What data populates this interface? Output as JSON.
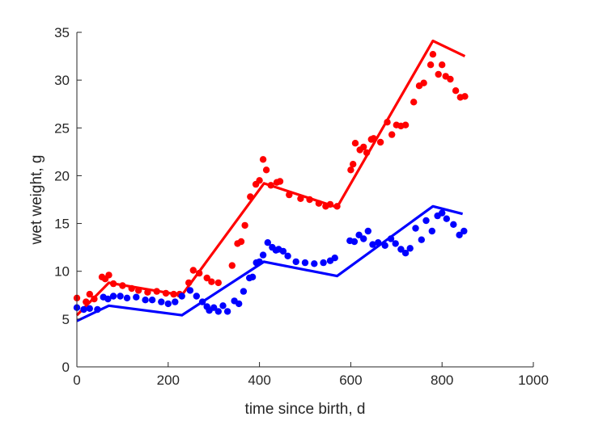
{
  "chart_data": {
    "type": "scatter",
    "xlabel": "time since birth, d",
    "ylabel": "wet weight, g",
    "xlim": [
      0,
      1000
    ],
    "ylim": [
      0,
      35
    ],
    "xticks": [
      0,
      200,
      400,
      600,
      800,
      1000
    ],
    "yticks": [
      0,
      5,
      10,
      15,
      20,
      25,
      30,
      35
    ],
    "grid": false,
    "legend": "none",
    "series": [
      {
        "color": "#ff0000",
        "points": [
          [
            0,
            7.2
          ],
          [
            20,
            6.8
          ],
          [
            28,
            7.6
          ],
          [
            38,
            7.1
          ],
          [
            55,
            9.4
          ],
          [
            62,
            9.2
          ],
          [
            70,
            9.6
          ],
          [
            80,
            8.7
          ],
          [
            100,
            8.5
          ],
          [
            120,
            8.2
          ],
          [
            135,
            8.0
          ],
          [
            155,
            7.8
          ],
          [
            175,
            7.9
          ],
          [
            195,
            7.7
          ],
          [
            212,
            7.6
          ],
          [
            225,
            7.6
          ],
          [
            245,
            8.8
          ],
          [
            255,
            10.1
          ],
          [
            268,
            9.8
          ],
          [
            285,
            9.3
          ],
          [
            295,
            8.9
          ],
          [
            310,
            8.8
          ],
          [
            340,
            10.6
          ],
          [
            352,
            12.9
          ],
          [
            360,
            13.1
          ],
          [
            368,
            14.8
          ],
          [
            380,
            17.8
          ],
          [
            392,
            19.1
          ],
          [
            400,
            19.5
          ],
          [
            408,
            21.7
          ],
          [
            415,
            20.6
          ],
          [
            425,
            19.0
          ],
          [
            438,
            19.3
          ],
          [
            445,
            19.4
          ],
          [
            465,
            18.0
          ],
          [
            490,
            17.6
          ],
          [
            510,
            17.5
          ],
          [
            530,
            17.1
          ],
          [
            545,
            16.8
          ],
          [
            555,
            17.0
          ],
          [
            570,
            16.8
          ],
          [
            600,
            20.6
          ],
          [
            605,
            21.2
          ],
          [
            610,
            23.4
          ],
          [
            620,
            22.7
          ],
          [
            628,
            23.0
          ],
          [
            635,
            22.4
          ],
          [
            645,
            23.8
          ],
          [
            650,
            23.9
          ],
          [
            665,
            23.5
          ],
          [
            680,
            25.6
          ],
          [
            690,
            24.3
          ],
          [
            700,
            25.3
          ],
          [
            710,
            25.2
          ],
          [
            720,
            25.3
          ],
          [
            738,
            27.7
          ],
          [
            750,
            29.4
          ],
          [
            760,
            29.7
          ],
          [
            775,
            31.6
          ],
          [
            780,
            32.7
          ],
          [
            792,
            30.6
          ],
          [
            800,
            31.6
          ],
          [
            808,
            30.4
          ],
          [
            818,
            30.1
          ],
          [
            830,
            28.9
          ],
          [
            840,
            28.2
          ],
          [
            850,
            28.3
          ]
        ],
        "fit": [
          [
            0,
            5.4
          ],
          [
            70,
            8.8
          ],
          [
            230,
            7.5
          ],
          [
            410,
            19.2
          ],
          [
            570,
            16.7
          ],
          [
            780,
            34.1
          ],
          [
            850,
            32.5
          ]
        ]
      },
      {
        "color": "#0000ff",
        "points": [
          [
            0,
            6.2
          ],
          [
            15,
            6.0
          ],
          [
            28,
            6.1
          ],
          [
            45,
            6.0
          ],
          [
            58,
            7.3
          ],
          [
            68,
            7.1
          ],
          [
            80,
            7.4
          ],
          [
            95,
            7.4
          ],
          [
            110,
            7.2
          ],
          [
            130,
            7.3
          ],
          [
            150,
            7.0
          ],
          [
            165,
            7.0
          ],
          [
            185,
            6.8
          ],
          [
            200,
            6.6
          ],
          [
            215,
            6.8
          ],
          [
            230,
            7.4
          ],
          [
            248,
            8.0
          ],
          [
            262,
            7.4
          ],
          [
            275,
            6.8
          ],
          [
            285,
            6.3
          ],
          [
            290,
            5.9
          ],
          [
            300,
            6.2
          ],
          [
            310,
            5.8
          ],
          [
            320,
            6.4
          ],
          [
            330,
            5.8
          ],
          [
            345,
            6.9
          ],
          [
            355,
            6.6
          ],
          [
            365,
            7.9
          ],
          [
            378,
            9.3
          ],
          [
            385,
            9.4
          ],
          [
            393,
            10.9
          ],
          [
            400,
            11.0
          ],
          [
            408,
            11.7
          ],
          [
            418,
            13.0
          ],
          [
            428,
            12.5
          ],
          [
            436,
            12.2
          ],
          [
            442,
            12.3
          ],
          [
            452,
            12.1
          ],
          [
            462,
            11.6
          ],
          [
            480,
            11.0
          ],
          [
            500,
            10.9
          ],
          [
            520,
            10.8
          ],
          [
            540,
            10.9
          ],
          [
            555,
            11.1
          ],
          [
            565,
            11.4
          ],
          [
            598,
            13.2
          ],
          [
            608,
            13.1
          ],
          [
            618,
            13.8
          ],
          [
            628,
            13.4
          ],
          [
            638,
            14.2
          ],
          [
            648,
            12.8
          ],
          [
            660,
            13.0
          ],
          [
            675,
            12.7
          ],
          [
            688,
            13.4
          ],
          [
            698,
            12.9
          ],
          [
            710,
            12.3
          ],
          [
            720,
            11.9
          ],
          [
            730,
            12.4
          ],
          [
            742,
            14.5
          ],
          [
            755,
            13.3
          ],
          [
            765,
            15.3
          ],
          [
            778,
            14.2
          ],
          [
            790,
            15.8
          ],
          [
            800,
            16.1
          ],
          [
            810,
            15.5
          ],
          [
            825,
            14.9
          ],
          [
            838,
            13.8
          ],
          [
            848,
            14.2
          ]
        ],
        "fit": [
          [
            0,
            4.8
          ],
          [
            70,
            6.4
          ],
          [
            230,
            5.4
          ],
          [
            410,
            11.0
          ],
          [
            570,
            9.5
          ],
          [
            780,
            16.8
          ],
          [
            845,
            16.0
          ]
        ]
      }
    ]
  }
}
